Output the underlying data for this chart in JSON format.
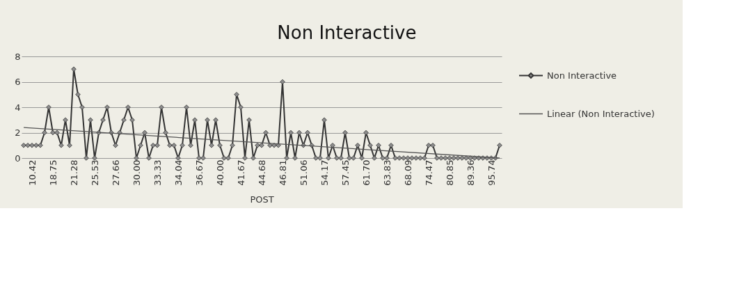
{
  "chart_data": {
    "type": "line",
    "title": "Non Interactive",
    "xlabel": "POST",
    "categories": [
      null,
      null,
      "10.42",
      null,
      null,
      null,
      null,
      "18.75",
      null,
      null,
      null,
      null,
      "21.28",
      null,
      null,
      null,
      null,
      "25.53",
      null,
      null,
      null,
      null,
      "27.66",
      null,
      null,
      null,
      null,
      "30.00",
      null,
      null,
      null,
      null,
      "33.33",
      null,
      null,
      null,
      null,
      "34.04",
      null,
      null,
      null,
      null,
      "36.67",
      null,
      null,
      null,
      null,
      "40.00",
      null,
      null,
      null,
      null,
      "41.67",
      null,
      null,
      null,
      null,
      "44.68",
      null,
      null,
      null,
      null,
      "46.81",
      null,
      null,
      null,
      null,
      "51.06",
      null,
      null,
      null,
      null,
      "54.17",
      null,
      null,
      null,
      null,
      "57.45",
      null,
      null,
      null,
      null,
      "61.70",
      null,
      null,
      null,
      null,
      "63.83",
      null,
      null,
      null,
      null,
      "68.09",
      null,
      null,
      null,
      null,
      "74.47",
      null,
      null,
      null,
      null,
      "80.85",
      null,
      null,
      null,
      null,
      "89.36",
      null,
      null,
      null,
      null,
      "95.74",
      null,
      null
    ],
    "series": [
      {
        "name": "Non Interactive",
        "color": "#333333",
        "marker": "diamond",
        "values": [
          1,
          1,
          1,
          1,
          1,
          2,
          4,
          2,
          2,
          1,
          3,
          1,
          7,
          5,
          4,
          0,
          3,
          0,
          2,
          3,
          4,
          2,
          1,
          2,
          3,
          4,
          3,
          0,
          1,
          2,
          0,
          1,
          1,
          4,
          2,
          1,
          1,
          0,
          1,
          4,
          1,
          3,
          0,
          0,
          3,
          1,
          3,
          1,
          0,
          0,
          1,
          5,
          4,
          0,
          3,
          0,
          1,
          1,
          2,
          1,
          1,
          1,
          6,
          0,
          2,
          0,
          2,
          1,
          2,
          1,
          0,
          0,
          3,
          0,
          1,
          0,
          0,
          2,
          0,
          0,
          1,
          0,
          2,
          1,
          0,
          1,
          0,
          0,
          1,
          0,
          0,
          0,
          0,
          0,
          0,
          0,
          0,
          1,
          1,
          0,
          0,
          0,
          0,
          0,
          0,
          0,
          0,
          0,
          0,
          0,
          0,
          0,
          0,
          0,
          1
        ]
      },
      {
        "name": "Linear (Non Interactive)",
        "color": "#555555",
        "marker": "none",
        "values": [
          2.4,
          null,
          null,
          null,
          null,
          null,
          null,
          null,
          null,
          null,
          null,
          null,
          null,
          null,
          null,
          null,
          null,
          null,
          null,
          null,
          null,
          null,
          null,
          null,
          null,
          null,
          null,
          null,
          null,
          null,
          null,
          null,
          null,
          null,
          null,
          null,
          null,
          null,
          null,
          null,
          null,
          null,
          null,
          null,
          null,
          null,
          null,
          null,
          null,
          null,
          null,
          null,
          null,
          null,
          null,
          null,
          null,
          null,
          null,
          null,
          null,
          null,
          null,
          null,
          null,
          null,
          null,
          null,
          null,
          null,
          null,
          null,
          null,
          null,
          null,
          null,
          null,
          null,
          null,
          null,
          null,
          null,
          null,
          null,
          null,
          null,
          null,
          null,
          null,
          null,
          null,
          null,
          null,
          null,
          null,
          null,
          null,
          null,
          null,
          null,
          null,
          null,
          null,
          null,
          null,
          null,
          null,
          null,
          null,
          null,
          null,
          null,
          null,
          null,
          0
        ]
      }
    ],
    "ylim": [
      0,
      8
    ],
    "yticks": [
      0,
      2,
      4,
      6,
      8
    ],
    "grid": "y",
    "legend": "right"
  }
}
